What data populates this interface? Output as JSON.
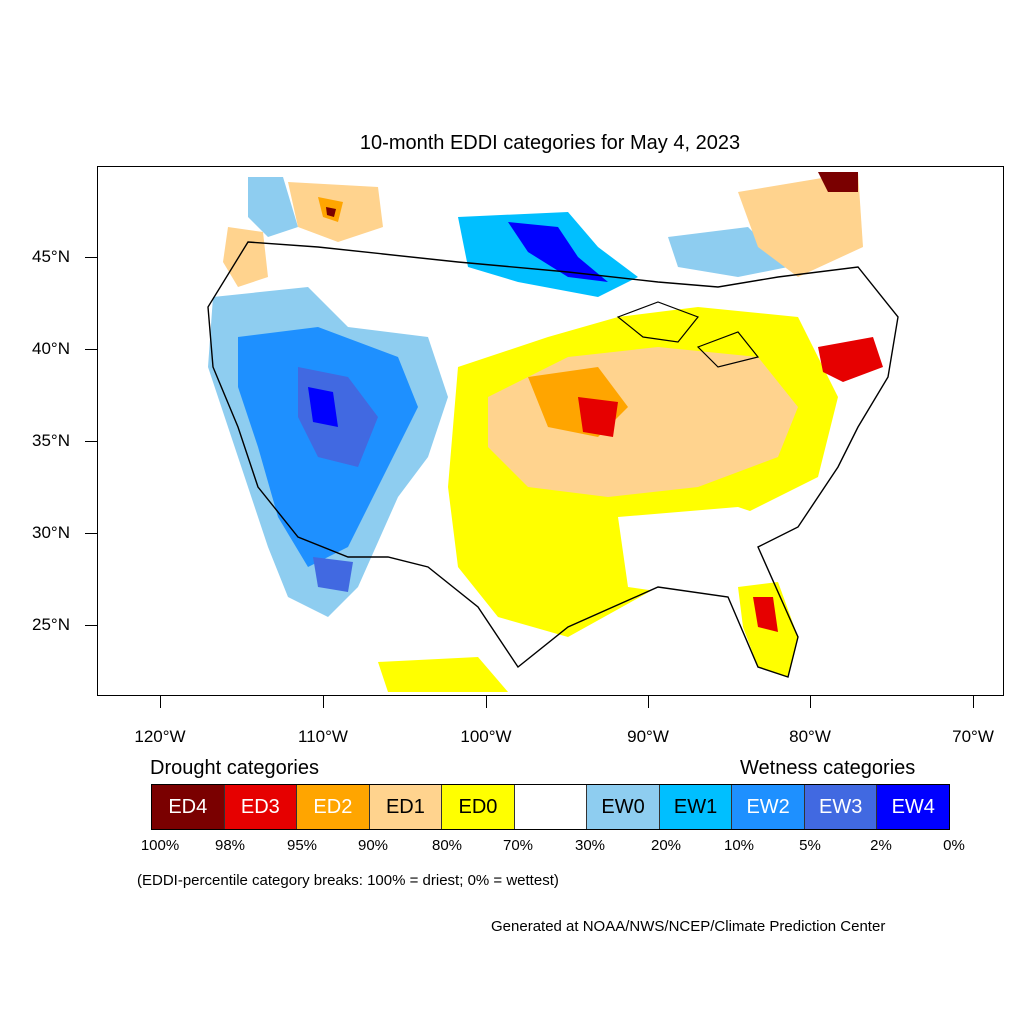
{
  "title": "10-month EDDI categories for May 4, 2023",
  "lat_labels": [
    "45°N",
    "40°N",
    "35°N",
    "30°N",
    "25°N"
  ],
  "lon_labels": [
    "120°W",
    "110°W",
    "100°W",
    "90°W",
    "80°W",
    "70°W"
  ],
  "legend": {
    "drought_heading": "Drought categories",
    "wetness_heading": "Wetness categories",
    "categories": [
      {
        "label": "ED4",
        "color": "#7a0000",
        "text_color": "#ffffff"
      },
      {
        "label": "ED3",
        "color": "#e60000",
        "text_color": "#ffffff"
      },
      {
        "label": "ED2",
        "color": "#ffa500",
        "text_color": "#ffffff"
      },
      {
        "label": "ED1",
        "color": "#ffd38e",
        "text_color": "#000000"
      },
      {
        "label": "ED0",
        "color": "#ffff00",
        "text_color": "#000000"
      },
      {
        "label": "",
        "color": "#ffffff",
        "text_color": "#000000"
      },
      {
        "label": "EW0",
        "color": "#8ecdf0",
        "text_color": "#000000"
      },
      {
        "label": "EW1",
        "color": "#00bfff",
        "text_color": "#000000"
      },
      {
        "label": "EW2",
        "color": "#1e90ff",
        "text_color": "#ffffff"
      },
      {
        "label": "EW3",
        "color": "#4169e1",
        "text_color": "#ffffff"
      },
      {
        "label": "EW4",
        "color": "#0000ff",
        "text_color": "#ffffff"
      }
    ],
    "percentiles": [
      "100%",
      "98%",
      "95%",
      "90%",
      "80%",
      "70%",
      "30%",
      "20%",
      "10%",
      "5%",
      "2%",
      "0%"
    ]
  },
  "note": "(EDDI-percentile category breaks: 100% = driest; 0% = wettest)",
  "credit": "Generated at NOAA/NWS/NCEP/Climate Prediction Center"
}
